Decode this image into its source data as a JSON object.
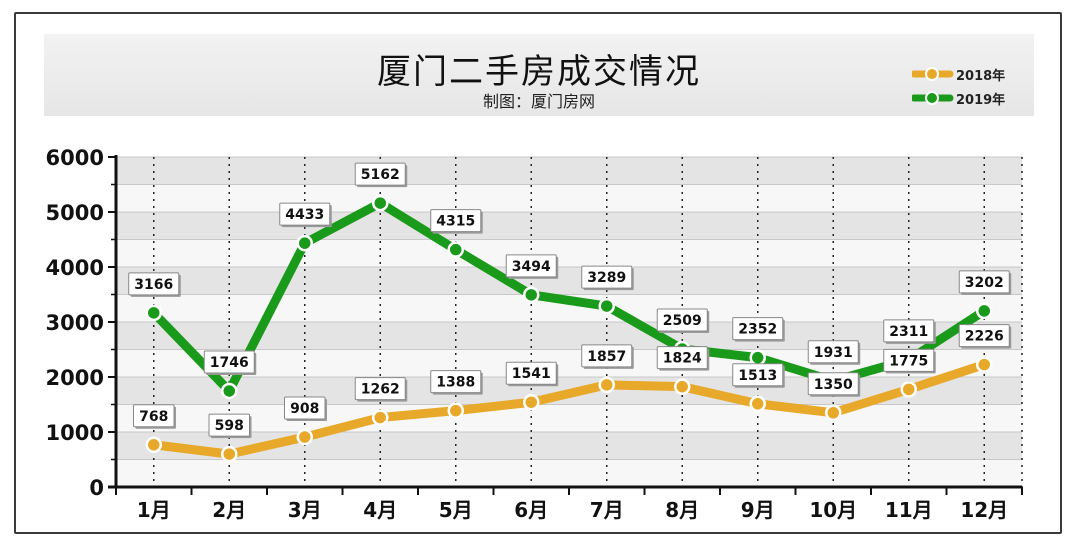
{
  "chart_data": {
    "type": "line",
    "title": "厦门二手房成交情况",
    "subtitle": "制图：厦门房网",
    "categories": [
      "1月",
      "2月",
      "3月",
      "4月",
      "5月",
      "6月",
      "7月",
      "8月",
      "9月",
      "10月",
      "11月",
      "12月"
    ],
    "series": [
      {
        "name": "2018年",
        "color": "#e8a92a",
        "values": [
          768,
          598,
          908,
          1262,
          1388,
          1541,
          1857,
          1824,
          1513,
          1350,
          1775,
          2226
        ]
      },
      {
        "name": "2019年",
        "color": "#1a9a1a",
        "values": [
          3166,
          1746,
          4433,
          5162,
          4315,
          3494,
          3289,
          2509,
          2352,
          1931,
          2311,
          3202
        ]
      }
    ],
    "ylim": [
      0,
      6000
    ],
    "yticks": [
      "0",
      "1000",
      "2000",
      "3000",
      "4000",
      "5000",
      "6000"
    ],
    "legend_position": "top-right",
    "grid": true
  }
}
